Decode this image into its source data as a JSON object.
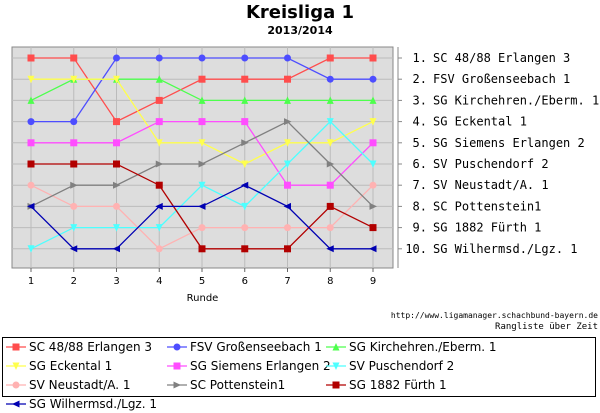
{
  "chart_data": {
    "type": "line",
    "title": "Kreisliga 1",
    "subtitle": "2013/2014",
    "xlabel": "Runde",
    "x": [
      1,
      2,
      3,
      4,
      5,
      6,
      7,
      8,
      9
    ],
    "ylim": [
      1,
      10
    ],
    "y_inverted": true,
    "grid": true,
    "legend_position": "bottom",
    "ranking_labels": [
      "1. SC 48/88 Erlangen 3",
      "2. FSV Großenseebach 1",
      "3. SG Kirchehren./Eberm. 1",
      "4. SG Eckental 1",
      "5. SG Siemens Erlangen 2",
      "6. SV Puschendorf 2",
      "7. SV Neustadt/A. 1",
      "8. SC Pottenstein1",
      "9. SG 1882 Fürth 1",
      "10. SG Wilhermsd./Lgz. 1"
    ],
    "series": [
      {
        "name": "SC 48/88 Erlangen 3",
        "color": "#ff4d4d",
        "marker": "square",
        "values": [
          1,
          1,
          4,
          3,
          2,
          2,
          2,
          1,
          1
        ]
      },
      {
        "name": "FSV Großenseebach 1",
        "color": "#4d4dff",
        "marker": "circle",
        "values": [
          4,
          4,
          1,
          1,
          1,
          1,
          1,
          2,
          2
        ]
      },
      {
        "name": "SG Kirchehren./Eberm. 1",
        "color": "#4dff4d",
        "marker": "triangle-up",
        "values": [
          3,
          2,
          2,
          2,
          3,
          3,
          3,
          3,
          3
        ]
      },
      {
        "name": "SG Eckental 1",
        "color": "#ffff4d",
        "marker": "triangle-down",
        "values": [
          2,
          2,
          2,
          5,
          5,
          6,
          5,
          5,
          4
        ]
      },
      {
        "name": "SG Siemens Erlangen 2",
        "color": "#ff4dff",
        "marker": "square",
        "values": [
          5,
          5,
          5,
          4,
          4,
          4,
          7,
          7,
          5
        ]
      },
      {
        "name": "SV Puschendorf 2",
        "color": "#4dffff",
        "marker": "triangle-down",
        "values": [
          10,
          9,
          9,
          9,
          7,
          8,
          6,
          4,
          6
        ]
      },
      {
        "name": "SV Neustadt/A. 1",
        "color": "#ffb2b2",
        "marker": "circle",
        "values": [
          7,
          8,
          8,
          10,
          9,
          9,
          9,
          9,
          7
        ]
      },
      {
        "name": "SC Pottenstein1",
        "color": "#808080",
        "marker": "triangle-right",
        "values": [
          8,
          7,
          7,
          6,
          6,
          5,
          4,
          6,
          8
        ]
      },
      {
        "name": "SG 1882 Fürth 1",
        "color": "#b20000",
        "marker": "square",
        "values": [
          6,
          6,
          6,
          7,
          10,
          10,
          10,
          8,
          9
        ]
      },
      {
        "name": "SG Wilhermsd./Lgz. 1",
        "color": "#0000b2",
        "marker": "triangle-left",
        "values": [
          8,
          10,
          10,
          8,
          8,
          7,
          8,
          10,
          10
        ]
      }
    ]
  },
  "credits": {
    "url": "http://www.ligamanager.schachbund-bayern.de",
    "caption": "Rangliste über Zeit"
  }
}
